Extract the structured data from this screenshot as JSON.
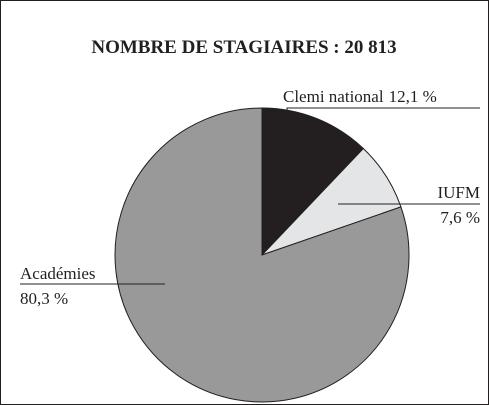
{
  "chart_data": {
    "type": "pie",
    "title": "NOMBRE DE STAGIAIRES : 20 813",
    "categories": [
      "Clemi national",
      "IUFM",
      "Académies"
    ],
    "values": [
      12.1,
      7.6,
      80.3
    ],
    "value_labels": [
      "12,1 %",
      "7,6 %",
      "80,3 %"
    ],
    "colors": [
      "#231f20",
      "#e4e5e6",
      "#999999"
    ]
  }
}
